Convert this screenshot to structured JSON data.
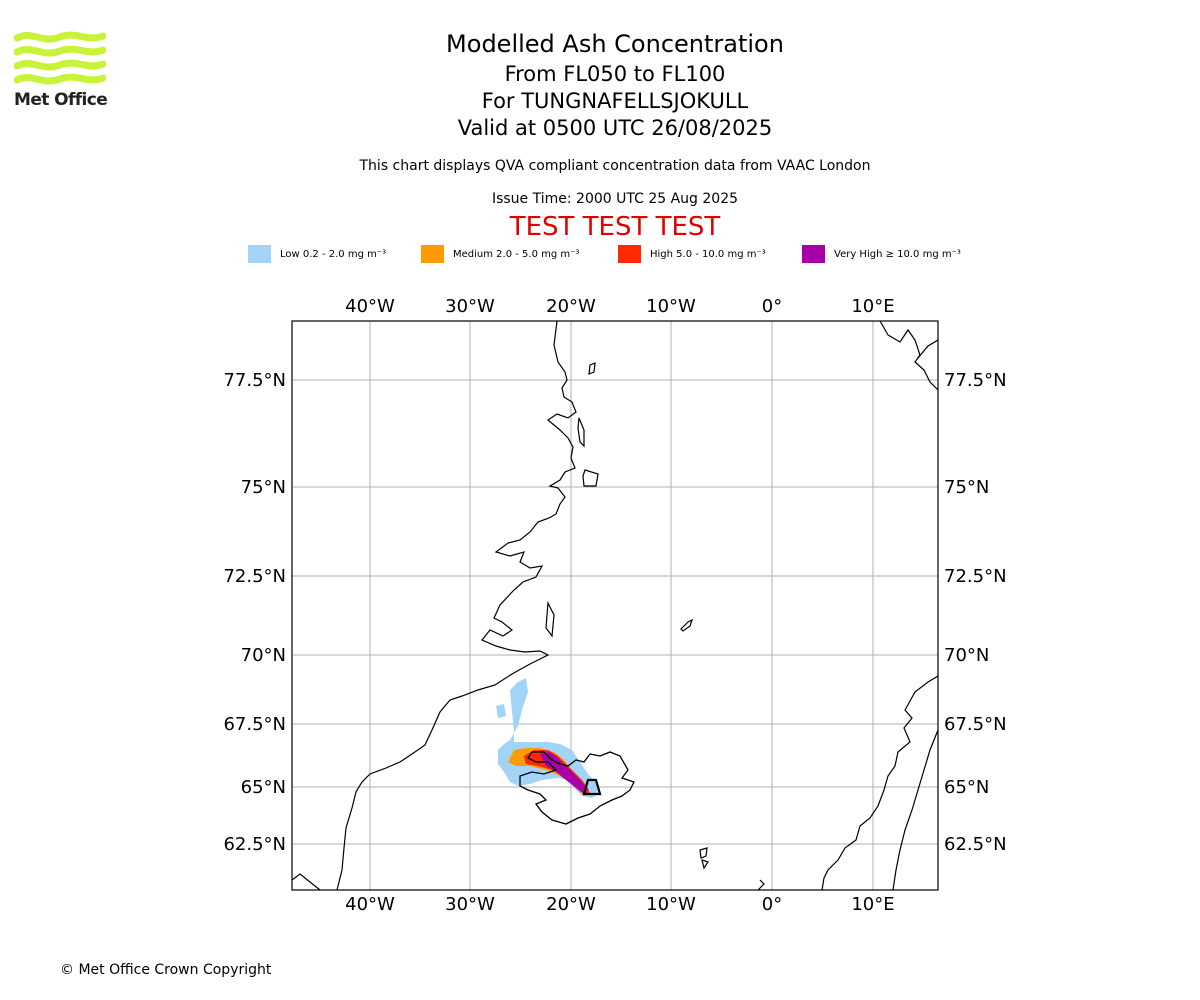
{
  "header": {
    "title": "Modelled Ash Concentration",
    "levels": "From FL050 to FL100",
    "volcano": "For TUNGNAFELLSJOKULL",
    "valid": "Valid at 0500 UTC 26/08/2025",
    "compliance_note": "This chart displays QVA compliant concentration data from VAAC London",
    "issue_time": "Issue Time: 2000 UTC 25 Aug 2025",
    "test_banner": "TEST TEST TEST"
  },
  "logo": {
    "text": "Met Office",
    "color": "#c9f23a"
  },
  "legend": [
    {
      "label": "Low 0.2 - 2.0 mg m⁻³",
      "color": "#a3d4f7"
    },
    {
      "label": "Medium 2.0 - 5.0 mg m⁻³",
      "color": "#ff9a00"
    },
    {
      "label": "High 5.0 - 10.0 mg m⁻³",
      "color": "#ff2a00"
    },
    {
      "label": "Very High  ≥  10.0 mg m⁻³",
      "color": "#a800a8"
    }
  ],
  "map": {
    "lon_ticks": [
      "40°W",
      "30°W",
      "20°W",
      "10°W",
      "0°",
      "10°E"
    ],
    "lat_ticks": [
      "77.5°N",
      "75°N",
      "72.5°N",
      "70°N",
      "67.5°N",
      "65°N",
      "62.5°N"
    ],
    "gridlines": true,
    "grid_color": "#b0b0b0",
    "coast_color": "#000000"
  },
  "footer": {
    "copyright": "© Met Office Crown Copyright"
  }
}
